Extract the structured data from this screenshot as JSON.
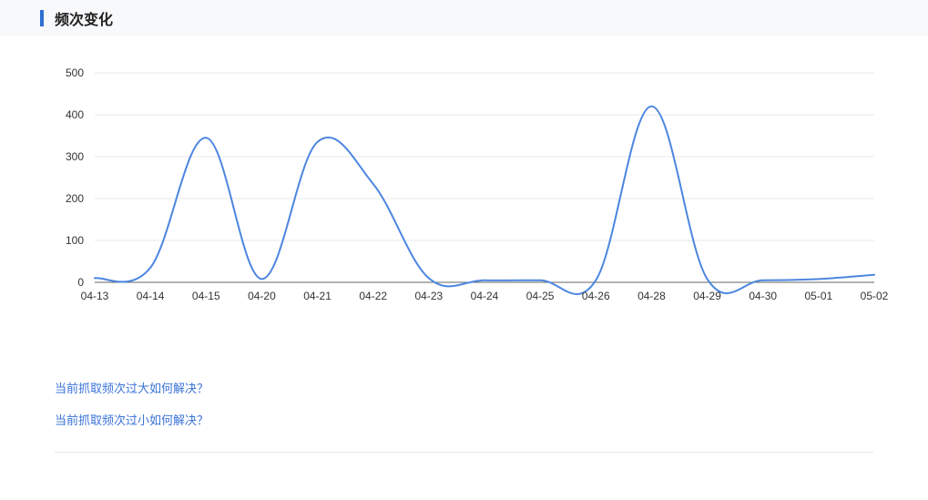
{
  "header": {
    "title": "频次变化",
    "accent_color": "#2f6fd1",
    "bg_color": "#f8f9fb"
  },
  "chart": {
    "type": "line",
    "line_color": "#4d86e0",
    "line_width": 2,
    "grid_color": "#e9e9e9",
    "axis_color": "#666666",
    "tick_font_size": 12,
    "tick_color": "#333333",
    "background_color": "#ffffff",
    "ylim": [
      0,
      500
    ],
    "yticks": [
      0,
      100,
      200,
      300,
      400,
      500
    ],
    "x_labels": [
      "04-13",
      "04-14",
      "04-15",
      "04-20",
      "04-21",
      "04-22",
      "04-23",
      "04-24",
      "04-25",
      "04-26",
      "04-28",
      "04-29",
      "04-30",
      "05-01",
      "05-02"
    ],
    "values": [
      10,
      35,
      345,
      8,
      335,
      235,
      10,
      5,
      5,
      5,
      420,
      8,
      5,
      8,
      18
    ]
  },
  "links": {
    "items": [
      {
        "label": "当前抓取频次过大如何解决？"
      },
      {
        "label": "当前抓取频次过小如何解决？"
      }
    ],
    "color": "#3b73d9"
  }
}
